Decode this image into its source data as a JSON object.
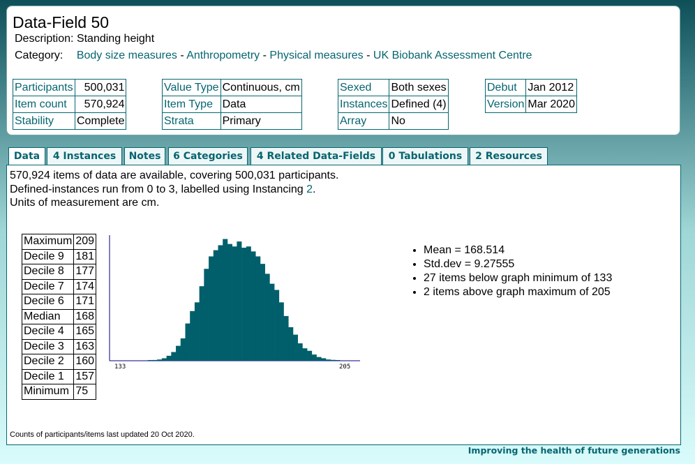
{
  "header": {
    "title": "Data-Field 50",
    "description_label": "Description:",
    "description": "Standing height",
    "category_label": "Category:",
    "category_path": [
      "Body size measures",
      "Anthropometry",
      "Physical measures",
      "UK Biobank Assessment Centre"
    ],
    "separator": " - "
  },
  "meta": {
    "participants_label": "Participants",
    "participants": "500,031",
    "item_count_label": "Item count",
    "item_count": "570,924",
    "stability_label": "Stability",
    "stability": "Complete",
    "value_type_label": "Value Type",
    "value_type": "Continuous, cm",
    "item_type_label": "Item Type",
    "item_type": "Data",
    "strata_label": "Strata",
    "strata": "Primary",
    "sexed_label": "Sexed",
    "sexed": "Both sexes",
    "instances_label": "Instances",
    "instances": "Defined (4)",
    "array_label": "Array",
    "array": "No",
    "debut_label": "Debut",
    "debut": "Jan 2012",
    "version_label": "Version",
    "version": "Mar 2020"
  },
  "tabs": [
    "Data",
    "4 Instances",
    "Notes",
    "6 Categories",
    "4 Related Data-Fields",
    "0 Tabulations",
    "2 Resources"
  ],
  "content": {
    "line1": "570,924 items of data are available, covering 500,031 participants.",
    "line2_prefix": "Defined-instances run from 0 to 3, labelled using Instancing ",
    "line2_link": "2",
    "line2_suffix": ".",
    "line3": "Units of measurement are cm.",
    "deciles": [
      {
        "label": "Maximum",
        "value": "209"
      },
      {
        "label": "Decile 9",
        "value": "181"
      },
      {
        "label": "Decile 8",
        "value": "177"
      },
      {
        "label": "Decile 7",
        "value": "174"
      },
      {
        "label": "Decile 6",
        "value": "171"
      },
      {
        "label": "Median",
        "value": "168"
      },
      {
        "label": "Decile 4",
        "value": "165"
      },
      {
        "label": "Decile 3",
        "value": "163"
      },
      {
        "label": "Decile 2",
        "value": "160"
      },
      {
        "label": "Decile 1",
        "value": "157"
      },
      {
        "label": "Minimum",
        "value": "75"
      }
    ],
    "stats": [
      "Mean = 168.514",
      "Std.dev = 9.27555",
      "27 items below graph minimum of 133",
      "2 items above graph maximum of 205"
    ],
    "footnote": "Counts of participants/items last updated 20 Oct 2020."
  },
  "colors": {
    "accent": "#066570",
    "bars": "#005f6b"
  },
  "chart_data": {
    "type": "bar",
    "xlim": [
      133,
      205
    ],
    "x_tick_labels": [
      "133",
      "205"
    ],
    "values": [
      0,
      0,
      0,
      0,
      0,
      0,
      0,
      0,
      0.004,
      0.006,
      0.01,
      0.02,
      0.04,
      0.07,
      0.12,
      0.18,
      0.3,
      0.4,
      0.47,
      0.6,
      0.74,
      0.84,
      0.89,
      0.93,
      0.98,
      0.94,
      0.92,
      0.96,
      0.91,
      0.92,
      0.88,
      0.84,
      0.78,
      0.7,
      0.62,
      0.57,
      0.47,
      0.36,
      0.27,
      0.21,
      0.14,
      0.1,
      0.08,
      0.05,
      0.03,
      0.02,
      0.01,
      0.007,
      0.003,
      0,
      0,
      0,
      0
    ],
    "grid": false
  },
  "footer": {
    "slogan": "Improving the health of future generations"
  }
}
